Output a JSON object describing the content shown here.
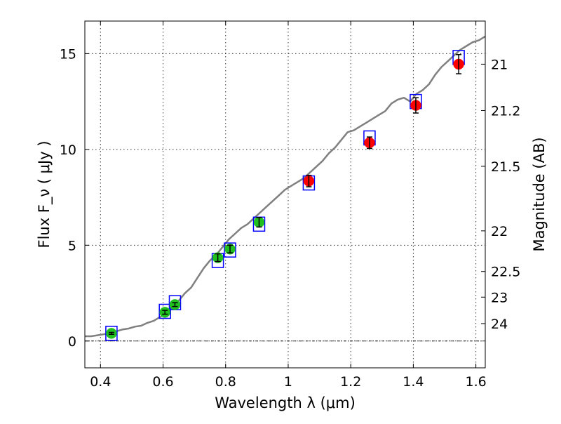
{
  "chart_data": {
    "type": "scatter",
    "xlabel": "Wavelength  λ (μm)",
    "ylabel": "Flux  F_ν  ( μJy )",
    "ylabel_right": "Magnitude (AB)",
    "xlim": [
      0.35,
      1.63
    ],
    "ylim": [
      -1.4,
      16.7
    ],
    "grid": true,
    "x_ticks": [
      0.4,
      0.6,
      0.8,
      1.0,
      1.2,
      1.4,
      1.6
    ],
    "x_tick_labels": [
      "0.4",
      "0.6",
      "0.8",
      "1",
      "1.2",
      "1.4",
      "1.6"
    ],
    "y_ticks": [
      0,
      5,
      10,
      15
    ],
    "y_tick_labels": [
      "0",
      "5",
      "10",
      "15"
    ],
    "magnitude_ticks": [
      {
        "label": "21",
        "flux": 14.45
      },
      {
        "label": "21.2",
        "flux": 12.03
      },
      {
        "label": "21.5",
        "flux": 9.12
      },
      {
        "label": "22",
        "flux": 5.75
      },
      {
        "label": "22.5",
        "flux": 3.63
      },
      {
        "label": "23",
        "flux": 2.29
      },
      {
        "label": "24",
        "flux": 0.91
      }
    ],
    "zero_line": 0,
    "model_spectrum": {
      "color": "#808080",
      "x": [
        0.35,
        0.37,
        0.39,
        0.41,
        0.43,
        0.45,
        0.47,
        0.49,
        0.51,
        0.53,
        0.55,
        0.57,
        0.59,
        0.61,
        0.63,
        0.65,
        0.67,
        0.69,
        0.71,
        0.73,
        0.75,
        0.77,
        0.79,
        0.81,
        0.83,
        0.85,
        0.87,
        0.89,
        0.91,
        0.93,
        0.95,
        0.97,
        0.99,
        1.01,
        1.03,
        1.05,
        1.07,
        1.09,
        1.11,
        1.13,
        1.15,
        1.17,
        1.19,
        1.21,
        1.23,
        1.25,
        1.27,
        1.29,
        1.31,
        1.33,
        1.35,
        1.37,
        1.39,
        1.41,
        1.43,
        1.45,
        1.47,
        1.49,
        1.51,
        1.53,
        1.55,
        1.57,
        1.59,
        1.61,
        1.63
      ],
      "y": [
        0.25,
        0.25,
        0.3,
        0.35,
        0.4,
        0.5,
        0.6,
        0.65,
        0.75,
        0.8,
        0.95,
        1.05,
        1.25,
        1.45,
        1.75,
        2.1,
        2.5,
        2.8,
        3.3,
        3.8,
        4.2,
        4.5,
        4.9,
        5.3,
        5.6,
        5.9,
        6.1,
        6.4,
        6.7,
        7.0,
        7.3,
        7.6,
        7.9,
        8.1,
        8.3,
        8.5,
        8.8,
        9.1,
        9.4,
        9.8,
        10.1,
        10.5,
        10.9,
        11.0,
        11.2,
        11.4,
        11.6,
        11.8,
        12.0,
        12.4,
        12.6,
        12.7,
        12.5,
        12.9,
        13.1,
        13.4,
        13.9,
        14.3,
        14.6,
        14.9,
        15.2,
        15.4,
        15.6,
        15.7,
        15.9
      ]
    },
    "series": [
      {
        "name": "",
        "color": "#1fbf1f",
        "points": [
          {
            "x": 0.435,
            "y": 0.4,
            "err": 0.05
          },
          {
            "x": 0.606,
            "y": 1.5,
            "err": 0.1
          },
          {
            "x": 0.638,
            "y": 1.9,
            "err": 0.1
          },
          {
            "x": 0.775,
            "y": 4.35,
            "err": 0.2
          },
          {
            "x": 0.814,
            "y": 4.8,
            "err": 0.2
          },
          {
            "x": 0.907,
            "y": 6.2,
            "err": 0.25
          }
        ]
      },
      {
        "name": "",
        "color": "#ff0000",
        "points": [
          {
            "x": 1.066,
            "y": 8.35,
            "err": 0.3
          },
          {
            "x": 1.26,
            "y": 10.35,
            "err": 0.3
          },
          {
            "x": 1.408,
            "y": 12.3,
            "err": 0.4
          },
          {
            "x": 1.545,
            "y": 14.45,
            "err": 0.5
          }
        ]
      }
    ],
    "model_photometry": {
      "color": "#0000ff",
      "points": [
        {
          "x": 0.435,
          "y": 0.4
        },
        {
          "x": 0.606,
          "y": 1.55
        },
        {
          "x": 0.638,
          "y": 2.0
        },
        {
          "x": 0.775,
          "y": 4.2
        },
        {
          "x": 0.814,
          "y": 4.75
        },
        {
          "x": 0.907,
          "y": 6.1
        },
        {
          "x": 1.066,
          "y": 8.25
        },
        {
          "x": 1.26,
          "y": 10.6
        },
        {
          "x": 1.408,
          "y": 12.5
        },
        {
          "x": 1.545,
          "y": 14.8
        }
      ]
    }
  }
}
